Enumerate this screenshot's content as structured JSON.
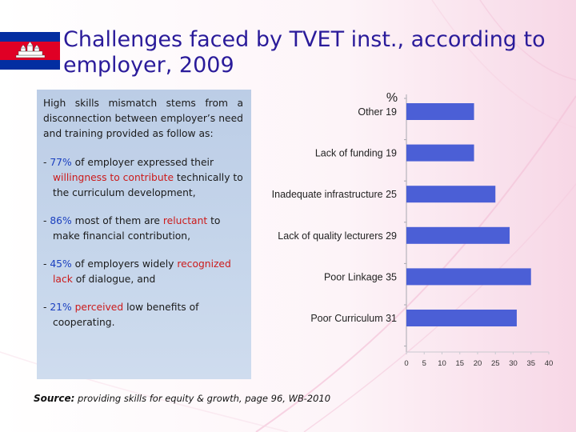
{
  "title": "Challenges faced by TVET inst., according to employer, 2009",
  "intro": "High skills mismatch stems from a disconnection between employer’s need and training provided as follow as:",
  "bullets": [
    {
      "dash": "- ",
      "num": "77%",
      "t1": " of employer expressed their ",
      "red": "willingness to contribute",
      "t2": " technically to the curriculum development,"
    },
    {
      "dash": "- ",
      "num": "86%",
      "t1": " most of them are ",
      "red": "reluctant",
      "t2": " to make financial contribution,"
    },
    {
      "dash": "- ",
      "num": "45%",
      "t1": " of employers widely ",
      "red": "recognized lack",
      "t2": " of dialogue, and"
    },
    {
      "dash": "- ",
      "num": "21%",
      "t1": " ",
      "red": "perceived",
      "t2": " low benefits of cooperating."
    }
  ],
  "source": {
    "label": "Source:",
    "text": " providing skills for equity & growth, page 96, WB-2010"
  },
  "colors": {
    "bar": "#4b5fd6",
    "title": "#2a1b9a",
    "red_text": "#cc1a1a",
    "num_text": "#1a3fbf",
    "flag_blue": "#032ea1",
    "flag_red": "#e00025"
  },
  "chart_data": {
    "type": "bar",
    "orientation": "horizontal",
    "unit_label": "%",
    "categories": [
      "Other 19",
      "Lack of funding 19",
      "Inadequate infrastructure 25",
      "Lack of quality lecturers 29",
      "Poor Linkage 35",
      "Poor Curriculum 31"
    ],
    "values": [
      19,
      19,
      25,
      29,
      35,
      31
    ],
    "xlim": [
      0,
      40
    ],
    "xticks": [
      "0",
      "5",
      "10",
      "15",
      "20",
      "25",
      "30",
      "35",
      "40"
    ],
    "grid": false,
    "legend": "none"
  }
}
